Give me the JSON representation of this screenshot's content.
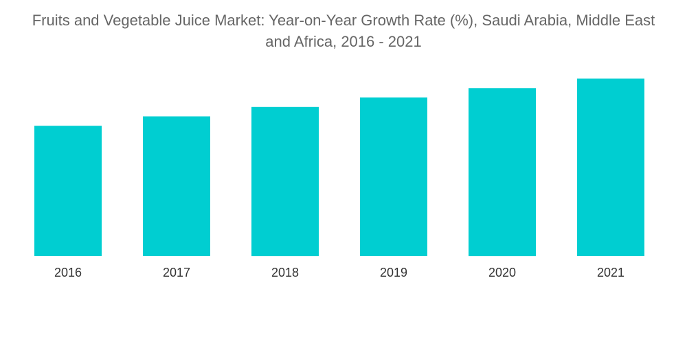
{
  "chart_data": {
    "type": "bar",
    "title_line1": "Fruits and Vegetable Juice Market: Year-on-Year Growth Rate (%), Saudi Arabia, Middle East",
    "title_line2": "and Africa, 2016 - 2021",
    "categories": [
      "2016",
      "2017",
      "2018",
      "2019",
      "2020",
      "2021"
    ],
    "values": [
      6.9,
      7.4,
      7.9,
      8.4,
      8.9,
      9.4
    ],
    "xlabel": "",
    "ylabel": "",
    "ylim": [
      0,
      10
    ],
    "grid": false,
    "legend": "none",
    "bar_color": "#00CED1"
  }
}
